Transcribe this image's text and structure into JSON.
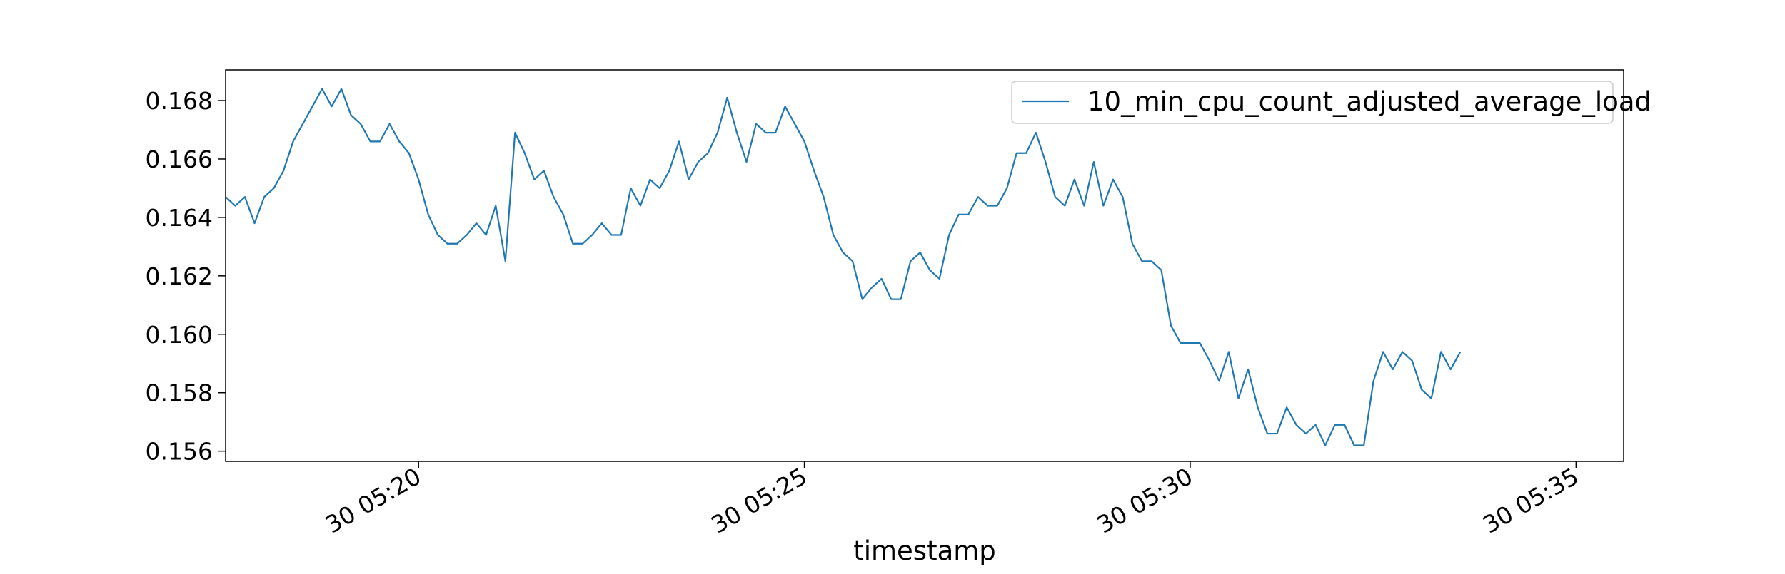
{
  "chart_data": {
    "type": "line",
    "title": "",
    "xlabel": "timestamp",
    "ylabel": "",
    "x_start": "30 05:17:30",
    "x_step_seconds": 7.5,
    "x_ticks": [
      "30 05:20",
      "30 05:25",
      "30 05:30",
      "30 05:35"
    ],
    "x_tick_times": [
      "05:20:00",
      "05:25:00",
      "05:30:00",
      "05:35:00"
    ],
    "x_range": [
      "05:17:30",
      "05:35:37"
    ],
    "y_ticks": [
      "0.156",
      "0.158",
      "0.160",
      "0.162",
      "0.164",
      "0.166",
      "0.168"
    ],
    "y_tick_values": [
      0.156,
      0.158,
      0.16,
      0.162,
      0.164,
      0.166,
      0.168
    ],
    "ylim": [
      0.15565,
      0.16905
    ],
    "grid": false,
    "legend_position": "top-right",
    "series": [
      {
        "name": "10_min_cpu_count_adjusted_average_load",
        "color": "#1f77b4",
        "values": [
          0.1647,
          0.1644,
          0.1647,
          0.1638,
          0.1647,
          0.165,
          0.1656,
          0.1666,
          0.1672,
          0.1678,
          0.1684,
          0.1678,
          0.1684,
          0.1675,
          0.1672,
          0.1666,
          0.1666,
          0.1672,
          0.1666,
          0.1662,
          0.1653,
          0.1641,
          0.1634,
          0.1631,
          0.1631,
          0.1634,
          0.1638,
          0.1634,
          0.1644,
          0.1625,
          0.1669,
          0.1662,
          0.1653,
          0.1656,
          0.1647,
          0.1641,
          0.1631,
          0.1631,
          0.1634,
          0.1638,
          0.1634,
          0.1634,
          0.165,
          0.1644,
          0.1653,
          0.165,
          0.1656,
          0.1666,
          0.1653,
          0.1659,
          0.1662,
          0.1669,
          0.1681,
          0.1669,
          0.1659,
          0.1672,
          0.1669,
          0.1669,
          0.1678,
          0.1672,
          0.1666,
          0.1656,
          0.1647,
          0.1634,
          0.1628,
          0.1625,
          0.1612,
          0.1616,
          0.1619,
          0.1612,
          0.1612,
          0.1625,
          0.1628,
          0.1622,
          0.1619,
          0.1634,
          0.1641,
          0.1641,
          0.1647,
          0.1644,
          0.1644,
          0.165,
          0.1662,
          0.1662,
          0.1669,
          0.1659,
          0.1647,
          0.1644,
          0.1653,
          0.1644,
          0.1659,
          0.1644,
          0.1653,
          0.1647,
          0.1631,
          0.1625,
          0.1625,
          0.1622,
          0.1603,
          0.1597,
          0.1597,
          0.1597,
          0.1591,
          0.1584,
          0.1594,
          0.1578,
          0.1588,
          0.1575,
          0.1566,
          0.1566,
          0.1575,
          0.1569,
          0.1566,
          0.1569,
          0.1562,
          0.1569,
          0.1569,
          0.1562,
          0.1562,
          0.1584,
          0.1594,
          0.1588,
          0.1594,
          0.1591,
          0.1581,
          0.1578,
          0.1594,
          0.1588,
          0.1594
        ]
      }
    ]
  }
}
